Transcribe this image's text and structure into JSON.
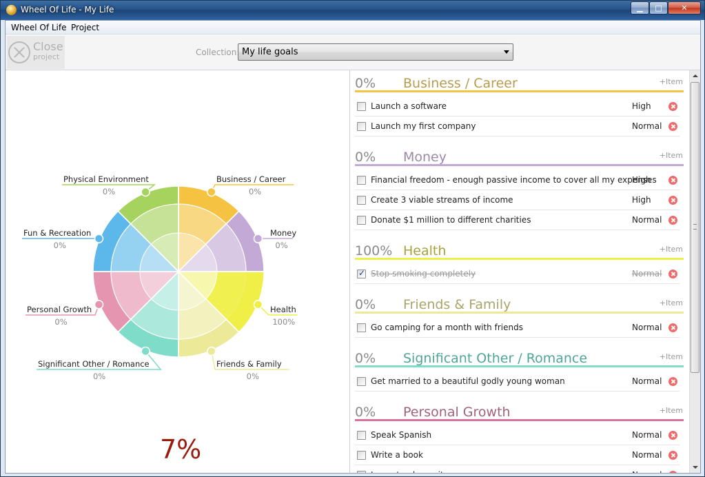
{
  "window": {
    "title": "Wheel Of Life - My Life",
    "minimize_glyph": "▁",
    "maximize_glyph": "□",
    "close_glyph": "✕"
  },
  "menu": {
    "items": [
      {
        "label": "Wheel Of Life"
      },
      {
        "label": "Project"
      }
    ]
  },
  "toolbar": {
    "close_label": "Close",
    "close_sublabel": "project",
    "collection_label": "Collection:",
    "collection_value": "My life goals"
  },
  "colors": {
    "business": "#f5c341",
    "money": "#c3aad6",
    "health": "#eeef48",
    "friends": "#ece999",
    "significant": "#7fdcc9",
    "personal": "#e595b0",
    "fun": "#5cb8ea",
    "physical": "#a5d35e"
  },
  "wheel": {
    "total": "7%",
    "areas": [
      {
        "name": "Business / Career",
        "pct": "0%",
        "progress": 0,
        "color": "#f5c341"
      },
      {
        "name": "Money",
        "pct": "0%",
        "progress": 0,
        "color": "#c3aad6"
      },
      {
        "name": "Health",
        "pct": "100%",
        "progress": 1,
        "color": "#eeef48"
      },
      {
        "name": "Friends & Family",
        "pct": "0%",
        "progress": 0,
        "color": "#ece999"
      },
      {
        "name": "Significant Other / Romance",
        "pct": "0%",
        "progress": 0,
        "color": "#7fdcc9"
      },
      {
        "name": "Personal Growth",
        "pct": "0%",
        "progress": 0,
        "color": "#e595b0"
      },
      {
        "name": "Fun & Recreation",
        "pct": "0%",
        "progress": 0,
        "color": "#5cb8ea"
      },
      {
        "name": "Physical Environment",
        "pct": "0%",
        "progress": 0,
        "color": "#a5d35e"
      }
    ]
  },
  "sections": [
    {
      "pct": "0%",
      "title": "Business / Career",
      "add": "+Item",
      "color": "#f5c341",
      "title_color": "#b79b4e",
      "items": [
        {
          "text": "Launch a software",
          "priority": "High",
          "done": false
        },
        {
          "text": "Launch my first company",
          "priority": "Normal",
          "done": false
        }
      ]
    },
    {
      "pct": "0%",
      "title": "Money",
      "add": "+Item",
      "color": "#c3aad6",
      "title_color": "#9a8aa6",
      "items": [
        {
          "text": "Financial freedom - enough passive income to cover all my expenses",
          "priority": "High",
          "done": false
        },
        {
          "text": "Create 3 viable streams of income",
          "priority": "High",
          "done": false
        },
        {
          "text": "Donate $1 million to different charities",
          "priority": "Normal",
          "done": false
        }
      ]
    },
    {
      "pct": "100%",
      "title": "Health",
      "add": "+Item",
      "color": "#eeef48",
      "title_color": "#a7a23d",
      "items": [
        {
          "text": "Stop smoking completely",
          "priority": "Normal",
          "done": true
        }
      ]
    },
    {
      "pct": "0%",
      "title": "Friends & Family",
      "add": "+Item",
      "color": "#ece999",
      "title_color": "#aaa46a",
      "items": [
        {
          "text": "Go camping for a month with friends",
          "priority": "Normal",
          "done": false
        }
      ]
    },
    {
      "pct": "0%",
      "title": "Significant Other / Romance",
      "add": "+Item",
      "color": "#7fdcc9",
      "title_color": "#4fa597",
      "items": [
        {
          "text": "Get married to a beautiful godly young woman",
          "priority": "Normal",
          "done": false
        }
      ]
    },
    {
      "pct": "0%",
      "title": "Personal Growth",
      "add": "+Item",
      "color": "#d9739a",
      "title_color": "#a2627a",
      "items": [
        {
          "text": "Speak Spanish",
          "priority": "Normal",
          "done": false
        },
        {
          "text": "Write a book",
          "priority": "Normal",
          "done": false
        },
        {
          "text": "Learn to play guitar",
          "priority": "Normal",
          "done": false
        }
      ]
    }
  ]
}
